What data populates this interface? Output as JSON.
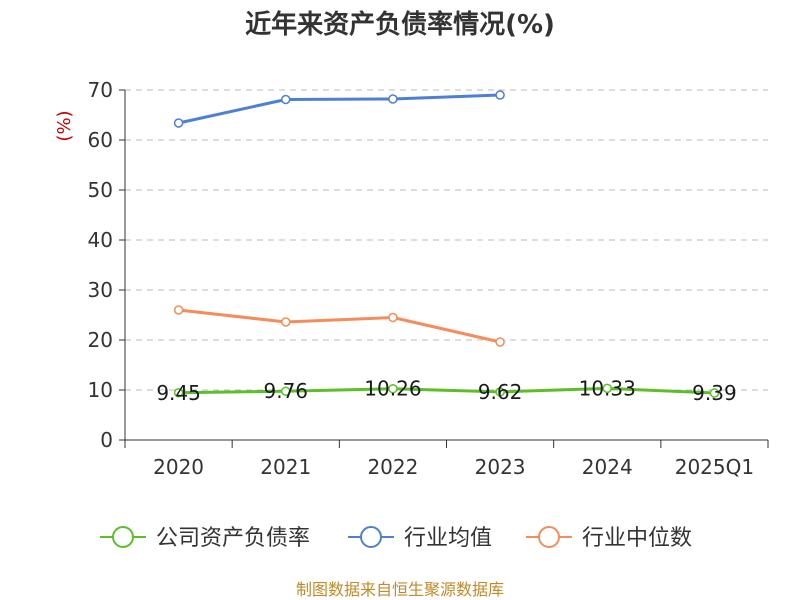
{
  "title": "近年来资产负债率情况(%)",
  "footer": "制图数据来自恒生聚源数据库",
  "colors": {
    "company": "#5cbf2a",
    "industry_avg": "#4e7fd6",
    "industry_median": "#f48d5b",
    "grid": "#bbbbbb",
    "axis": "#333333"
  },
  "chart_data": {
    "type": "line",
    "title": "近年来资产负债率情况(%)",
    "xlabel": "",
    "ylabel": "(%)",
    "ylim": [
      0,
      70
    ],
    "yticks": [
      0,
      10,
      20,
      30,
      40,
      50,
      60,
      70
    ],
    "grid": true,
    "legend_position": "bottom",
    "categories": [
      "2020",
      "2021",
      "2022",
      "2023",
      "2024",
      "2025Q1"
    ],
    "series": [
      {
        "name": "公司资产负债率",
        "color": "#5cbf2a",
        "values": [
          9.45,
          9.76,
          10.26,
          9.62,
          10.33,
          9.39
        ],
        "labels": [
          "9.45",
          "9.76",
          "10.26",
          "9.62",
          "10.33",
          "9.39"
        ]
      },
      {
        "name": "行业均值",
        "color": "#4e7fd6",
        "values": [
          63.4,
          68.1,
          68.2,
          69.0,
          null,
          null
        ]
      },
      {
        "name": "行业中位数",
        "color": "#f48d5b",
        "values": [
          26.0,
          23.6,
          24.5,
          19.6,
          null,
          null
        ]
      }
    ]
  }
}
